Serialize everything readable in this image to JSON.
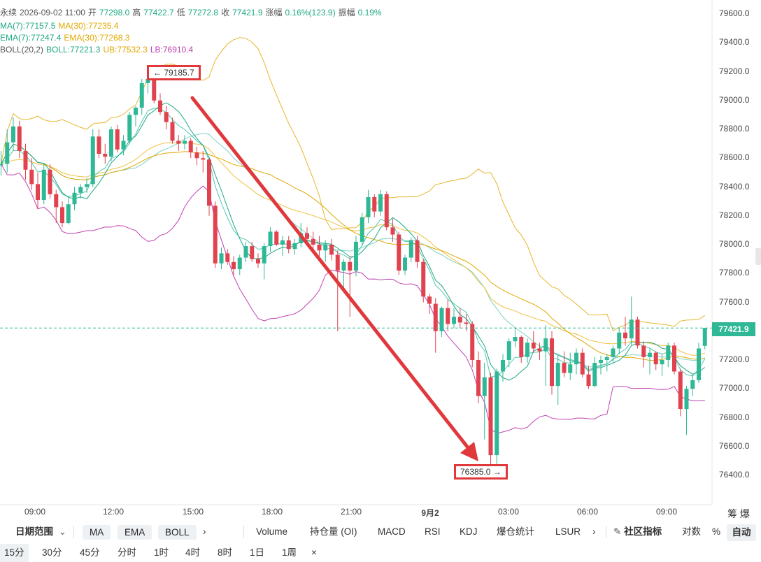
{
  "header": {
    "line1": [
      {
        "text": "永续",
        "cls": "c-gray"
      },
      {
        "text": "2026-09-02 11:00",
        "cls": "c-gray"
      },
      {
        "text": "开",
        "cls": "c-gray"
      },
      {
        "text": "77298.0",
        "cls": "c-teal"
      },
      {
        "text": "高",
        "cls": "c-gray"
      },
      {
        "text": "77422.7",
        "cls": "c-teal"
      },
      {
        "text": "低",
        "cls": "c-gray"
      },
      {
        "text": "77272.8",
        "cls": "c-teal"
      },
      {
        "text": "收",
        "cls": "c-gray"
      },
      {
        "text": "77421.9",
        "cls": "c-teal"
      },
      {
        "text": "涨幅",
        "cls": "c-gray"
      },
      {
        "text": "0.16%(123.9)",
        "cls": "c-teal"
      },
      {
        "text": "振幅",
        "cls": "c-gray"
      },
      {
        "text": "0.19%",
        "cls": "c-teal"
      }
    ],
    "line2": [
      {
        "text": "MA(7):77157.5",
        "cls": "c-teal"
      },
      {
        "text": "MA(30):77235.4",
        "cls": "c-gold"
      }
    ],
    "line3": [
      {
        "text": "EMA(7):77247.4",
        "cls": "c-teal"
      },
      {
        "text": "EMA(30):77268.3",
        "cls": "c-gold"
      }
    ],
    "line4": [
      {
        "text": "BOLL(20,2)",
        "cls": "c-gray"
      },
      {
        "text": "BOLL:77221.3",
        "cls": "c-teal"
      },
      {
        "text": "UB:77532.3",
        "cls": "c-gold"
      },
      {
        "text": "LB:76910.4",
        "cls": "c-mag"
      }
    ]
  },
  "callouts": {
    "high": "← 79185.7",
    "low": "76385.0 →"
  },
  "current_price": "77421.9",
  "colors": {
    "up": "#2fb896",
    "down": "#e0434f",
    "ma7": "#1ea885",
    "ma30": "#e0a800",
    "boll_mid": "#7fd3c5",
    "boll_band": "#e7b52c",
    "boll_lb": "#c040b0",
    "arrow": "#e0383b"
  },
  "chart_data": {
    "type": "candlestick",
    "y_ticks": [
      "79600.0",
      "79400.0",
      "79200.0",
      "79000.0",
      "78800.0",
      "78600.0",
      "78400.0",
      "78200.0",
      "78000.0",
      "77800.0",
      "77600.0",
      "77400.0",
      "77200.0",
      "77000.0",
      "76800.0",
      "76600.0",
      "76400.0"
    ],
    "ylim": [
      76250,
      79700
    ],
    "x_ticks": [
      "09:00",
      "12:00",
      "15:00",
      "18:00",
      "21:00",
      "9月2",
      "03:00",
      "06:00",
      "09:00"
    ],
    "candles": [
      {
        "o": 78550,
        "h": 78650,
        "l": 78480,
        "c": 78560
      },
      {
        "o": 78560,
        "h": 78800,
        "l": 78500,
        "c": 78710
      },
      {
        "o": 78710,
        "h": 78880,
        "l": 78650,
        "c": 78820
      },
      {
        "o": 78820,
        "h": 78860,
        "l": 78600,
        "c": 78650
      },
      {
        "o": 78650,
        "h": 78700,
        "l": 78450,
        "c": 78520
      },
      {
        "o": 78520,
        "h": 78600,
        "l": 78380,
        "c": 78420
      },
      {
        "o": 78420,
        "h": 78500,
        "l": 78250,
        "c": 78310
      },
      {
        "o": 78310,
        "h": 78560,
        "l": 78280,
        "c": 78520
      },
      {
        "o": 78520,
        "h": 78560,
        "l": 78320,
        "c": 78350
      },
      {
        "o": 78350,
        "h": 78380,
        "l": 78150,
        "c": 78260
      },
      {
        "o": 78260,
        "h": 78300,
        "l": 78120,
        "c": 78150
      },
      {
        "o": 78150,
        "h": 78320,
        "l": 78140,
        "c": 78280
      },
      {
        "o": 78280,
        "h": 78400,
        "l": 78240,
        "c": 78360
      },
      {
        "o": 78360,
        "h": 78420,
        "l": 78320,
        "c": 78400
      },
      {
        "o": 78400,
        "h": 78460,
        "l": 78360,
        "c": 78420
      },
      {
        "o": 78420,
        "h": 78800,
        "l": 78400,
        "c": 78750
      },
      {
        "o": 78750,
        "h": 78800,
        "l": 78600,
        "c": 78630
      },
      {
        "o": 78630,
        "h": 78700,
        "l": 78560,
        "c": 78610
      },
      {
        "o": 78610,
        "h": 78820,
        "l": 78580,
        "c": 78800
      },
      {
        "o": 78800,
        "h": 78830,
        "l": 78640,
        "c": 78660
      },
      {
        "o": 78660,
        "h": 78760,
        "l": 78620,
        "c": 78720
      },
      {
        "o": 78720,
        "h": 78920,
        "l": 78700,
        "c": 78900
      },
      {
        "o": 78900,
        "h": 78960,
        "l": 78820,
        "c": 78950
      },
      {
        "o": 78950,
        "h": 79150,
        "l": 78900,
        "c": 79120
      },
      {
        "o": 79120,
        "h": 79186,
        "l": 79050,
        "c": 79150
      },
      {
        "o": 79150,
        "h": 79160,
        "l": 78980,
        "c": 79000
      },
      {
        "o": 79000,
        "h": 79050,
        "l": 78900,
        "c": 78920
      },
      {
        "o": 78920,
        "h": 78960,
        "l": 78800,
        "c": 78850
      },
      {
        "o": 78850,
        "h": 78880,
        "l": 78700,
        "c": 78720
      },
      {
        "o": 78720,
        "h": 78760,
        "l": 78650,
        "c": 78700
      },
      {
        "o": 78700,
        "h": 78760,
        "l": 78660,
        "c": 78720
      },
      {
        "o": 78720,
        "h": 78740,
        "l": 78600,
        "c": 78640
      },
      {
        "o": 78640,
        "h": 78680,
        "l": 78550,
        "c": 78600
      },
      {
        "o": 78600,
        "h": 78650,
        "l": 78500,
        "c": 78590
      },
      {
        "o": 78590,
        "h": 78600,
        "l": 78200,
        "c": 78270
      },
      {
        "o": 78270,
        "h": 78300,
        "l": 77840,
        "c": 77870
      },
      {
        "o": 77870,
        "h": 77980,
        "l": 77830,
        "c": 77940
      },
      {
        "o": 77940,
        "h": 77970,
        "l": 77860,
        "c": 77880
      },
      {
        "o": 77880,
        "h": 77920,
        "l": 77780,
        "c": 77830
      },
      {
        "o": 77830,
        "h": 77930,
        "l": 77790,
        "c": 77910
      },
      {
        "o": 77910,
        "h": 78020,
        "l": 77880,
        "c": 77990
      },
      {
        "o": 77990,
        "h": 78020,
        "l": 77880,
        "c": 77900
      },
      {
        "o": 77900,
        "h": 77940,
        "l": 77840,
        "c": 77870
      },
      {
        "o": 77870,
        "h": 78010,
        "l": 77760,
        "c": 77990
      },
      {
        "o": 77990,
        "h": 78120,
        "l": 77950,
        "c": 78090
      },
      {
        "o": 78090,
        "h": 78100,
        "l": 77990,
        "c": 78000
      },
      {
        "o": 78000,
        "h": 78060,
        "l": 77920,
        "c": 78030
      },
      {
        "o": 78030,
        "h": 78060,
        "l": 77940,
        "c": 77970
      },
      {
        "o": 77970,
        "h": 78040,
        "l": 77930,
        "c": 78010
      },
      {
        "o": 78010,
        "h": 78150,
        "l": 77980,
        "c": 78080
      },
      {
        "o": 78080,
        "h": 78120,
        "l": 78000,
        "c": 78040
      },
      {
        "o": 78040,
        "h": 78090,
        "l": 77960,
        "c": 78000
      },
      {
        "o": 78000,
        "h": 78060,
        "l": 77920,
        "c": 77960
      },
      {
        "o": 77960,
        "h": 78030,
        "l": 77880,
        "c": 78000
      },
      {
        "o": 78000,
        "h": 78040,
        "l": 77890,
        "c": 77930
      },
      {
        "o": 77930,
        "h": 77960,
        "l": 77400,
        "c": 77820
      },
      {
        "o": 77820,
        "h": 77900,
        "l": 77700,
        "c": 77880
      },
      {
        "o": 77880,
        "h": 77920,
        "l": 77500,
        "c": 77820
      },
      {
        "o": 77820,
        "h": 78060,
        "l": 77780,
        "c": 78020
      },
      {
        "o": 78020,
        "h": 78220,
        "l": 77990,
        "c": 78190
      },
      {
        "o": 78190,
        "h": 78380,
        "l": 78150,
        "c": 78330
      },
      {
        "o": 78330,
        "h": 78350,
        "l": 78190,
        "c": 78230
      },
      {
        "o": 78230,
        "h": 78380,
        "l": 78200,
        "c": 78350
      },
      {
        "o": 78350,
        "h": 78370,
        "l": 78100,
        "c": 78120
      },
      {
        "o": 78120,
        "h": 78180,
        "l": 78020,
        "c": 78070
      },
      {
        "o": 78070,
        "h": 78090,
        "l": 77790,
        "c": 77820
      },
      {
        "o": 77820,
        "h": 77930,
        "l": 77790,
        "c": 77910
      },
      {
        "o": 77910,
        "h": 78050,
        "l": 77880,
        "c": 78030
      },
      {
        "o": 78030,
        "h": 78060,
        "l": 77840,
        "c": 77880
      },
      {
        "o": 77880,
        "h": 77900,
        "l": 77600,
        "c": 77640
      },
      {
        "o": 77640,
        "h": 77660,
        "l": 77520,
        "c": 77590
      },
      {
        "o": 77590,
        "h": 77630,
        "l": 77250,
        "c": 77400
      },
      {
        "o": 77400,
        "h": 77570,
        "l": 77360,
        "c": 77560
      },
      {
        "o": 77560,
        "h": 77620,
        "l": 77400,
        "c": 77450
      },
      {
        "o": 77450,
        "h": 77560,
        "l": 77420,
        "c": 77500
      },
      {
        "o": 77500,
        "h": 77560,
        "l": 77420,
        "c": 77460
      },
      {
        "o": 77460,
        "h": 77520,
        "l": 77400,
        "c": 77450
      },
      {
        "o": 77450,
        "h": 77470,
        "l": 77150,
        "c": 77200
      },
      {
        "o": 77200,
        "h": 77260,
        "l": 76900,
        "c": 76950
      },
      {
        "o": 76950,
        "h": 77180,
        "l": 76650,
        "c": 77080
      },
      {
        "o": 77080,
        "h": 77110,
        "l": 76460,
        "c": 76540
      },
      {
        "o": 76540,
        "h": 77140,
        "l": 76385,
        "c": 77120
      },
      {
        "o": 77120,
        "h": 77240,
        "l": 77050,
        "c": 77200
      },
      {
        "o": 77200,
        "h": 77350,
        "l": 77150,
        "c": 77330
      },
      {
        "o": 77330,
        "h": 77420,
        "l": 77290,
        "c": 77360
      },
      {
        "o": 77360,
        "h": 77370,
        "l": 77180,
        "c": 77220
      },
      {
        "o": 77220,
        "h": 77350,
        "l": 77180,
        "c": 77320
      },
      {
        "o": 77320,
        "h": 77400,
        "l": 77250,
        "c": 77280
      },
      {
        "o": 77280,
        "h": 77320,
        "l": 77200,
        "c": 77260
      },
      {
        "o": 77260,
        "h": 77440,
        "l": 77020,
        "c": 77350
      },
      {
        "o": 77350,
        "h": 77400,
        "l": 76960,
        "c": 77020
      },
      {
        "o": 77020,
        "h": 77230,
        "l": 76890,
        "c": 77180
      },
      {
        "o": 77180,
        "h": 77260,
        "l": 77080,
        "c": 77110
      },
      {
        "o": 77110,
        "h": 77250,
        "l": 77060,
        "c": 77170
      },
      {
        "o": 77170,
        "h": 77280,
        "l": 77100,
        "c": 77250
      },
      {
        "o": 77250,
        "h": 77280,
        "l": 77080,
        "c": 77100
      },
      {
        "o": 77100,
        "h": 77160,
        "l": 77000,
        "c": 77020
      },
      {
        "o": 77020,
        "h": 77220,
        "l": 77010,
        "c": 77180
      },
      {
        "o": 77180,
        "h": 77230,
        "l": 77100,
        "c": 77200
      },
      {
        "o": 77200,
        "h": 77240,
        "l": 77120,
        "c": 77220
      },
      {
        "o": 77220,
        "h": 77300,
        "l": 77180,
        "c": 77280
      },
      {
        "o": 77280,
        "h": 77420,
        "l": 77240,
        "c": 77390
      },
      {
        "o": 77390,
        "h": 77500,
        "l": 77300,
        "c": 77350
      },
      {
        "o": 77350,
        "h": 77640,
        "l": 77300,
        "c": 77480
      },
      {
        "o": 77480,
        "h": 77500,
        "l": 77280,
        "c": 77300
      },
      {
        "o": 77300,
        "h": 77330,
        "l": 77150,
        "c": 77220
      },
      {
        "o": 77220,
        "h": 77280,
        "l": 77100,
        "c": 77250
      },
      {
        "o": 77250,
        "h": 77260,
        "l": 77130,
        "c": 77170
      },
      {
        "o": 77170,
        "h": 77240,
        "l": 77090,
        "c": 77200
      },
      {
        "o": 77200,
        "h": 77320,
        "l": 77150,
        "c": 77300
      },
      {
        "o": 77300,
        "h": 77320,
        "l": 77100,
        "c": 77120
      },
      {
        "o": 77120,
        "h": 77140,
        "l": 76810,
        "c": 76860
      },
      {
        "o": 76860,
        "h": 77020,
        "l": 76680,
        "c": 77000
      },
      {
        "o": 77000,
        "h": 77100,
        "l": 76950,
        "c": 77060
      },
      {
        "o": 77060,
        "h": 77320,
        "l": 77040,
        "c": 77280
      },
      {
        "o": 77298,
        "h": 77423,
        "l": 77273,
        "c": 77422
      }
    ]
  },
  "toolbar": {
    "range_label": "日期范围",
    "range_arrow": "⌄",
    "btn_ma": "MA",
    "btn_ema": "EMA",
    "btn_boll": "BOLL",
    "more1": "›",
    "ind_volume": "Volume",
    "ind_oi": "持仓量 (OI)",
    "ind_macd": "MACD",
    "ind_rsi": "RSI",
    "ind_kdj": "KDJ",
    "ind_liq": "爆仓统计",
    "ind_lsur": "LSUR",
    "more2": "›",
    "community": "社区指标",
    "log": "对数",
    "pct": "%",
    "auto": "自动"
  },
  "timeframes": [
    "15分",
    "30分",
    "45分",
    "分时",
    "1时",
    "4时",
    "8时",
    "1日",
    "1周",
    "×"
  ],
  "corner": {
    "text": "筹 爆"
  }
}
